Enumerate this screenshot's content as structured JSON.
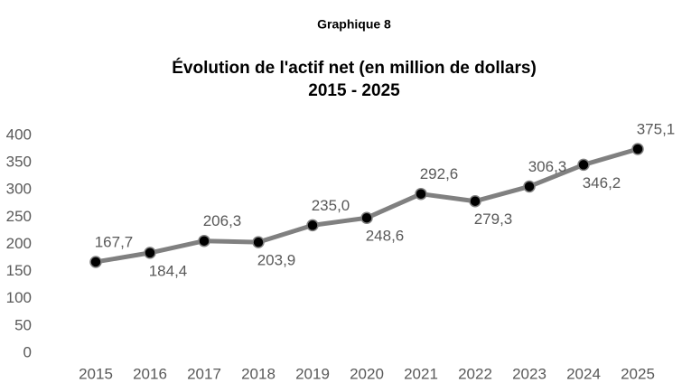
{
  "chart_data": {
    "type": "line",
    "label": "Graphique 8",
    "title": "Évolution de l'actif net (en million de dollars)",
    "subtitle": "2015 - 2025",
    "categories": [
      "2015",
      "2016",
      "2017",
      "2018",
      "2019",
      "2020",
      "2021",
      "2022",
      "2023",
      "2024",
      "2025"
    ],
    "series": [
      {
        "name": "Actif net",
        "color": "#808080",
        "values": [
          167.7,
          184.4,
          206.3,
          203.9,
          235.0,
          248.6,
          292.6,
          279.3,
          306.3,
          346.2,
          375.1
        ],
        "value_labels": [
          "167,7",
          "184,4",
          "206,3",
          "203,9",
          "235,0",
          "248,6",
          "292,6",
          "279,3",
          "306,3",
          "346,2",
          "375,1"
        ]
      }
    ],
    "ylim": [
      0,
      400
    ],
    "yticks": [
      0,
      50,
      100,
      150,
      200,
      250,
      300,
      350,
      400
    ],
    "grid": false,
    "legend": false
  }
}
